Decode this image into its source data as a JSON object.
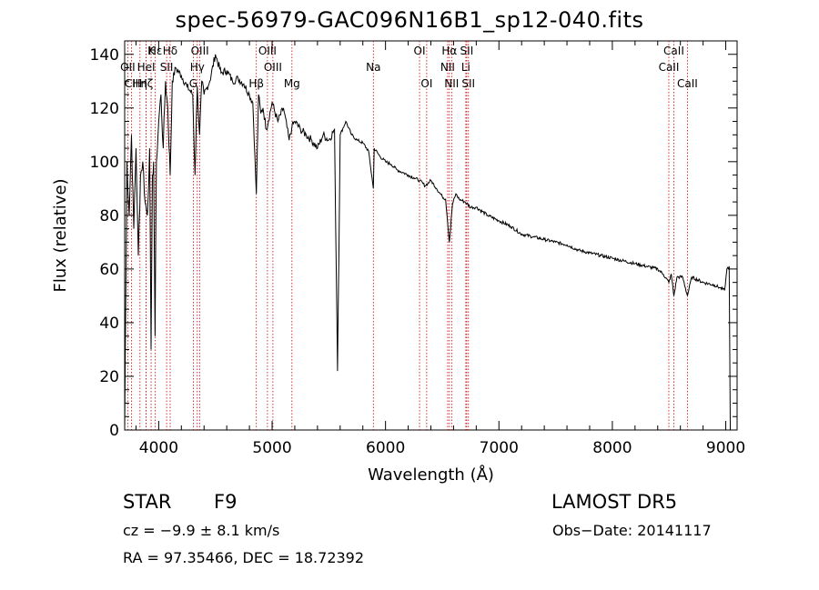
{
  "chart_data": {
    "type": "line",
    "title": "spec-56979-GAC096N16B1_sp12-040.fits",
    "xlabel": "Wavelength (Å)",
    "ylabel": "Flux (relative)",
    "xlim": [
      3700,
      9100
    ],
    "ylim": [
      0,
      145
    ],
    "xticks": [
      4000,
      5000,
      6000,
      7000,
      8000,
      9000
    ],
    "yticks": [
      0,
      20,
      40,
      60,
      80,
      100,
      120,
      140
    ],
    "grid": false,
    "line_color": "#000000",
    "marker_color": "#cc0000",
    "series": [
      {
        "x": [
          3700,
          3720,
          3740,
          3760,
          3780,
          3800,
          3820,
          3840,
          3860,
          3880,
          3900,
          3920,
          3933,
          3945,
          3955,
          3968,
          3980,
          4000,
          4020,
          4040,
          4060,
          4080,
          4101,
          4120,
          4150,
          4200,
          4250,
          4300,
          4320,
          4340,
          4360,
          4380,
          4400,
          4450,
          4500,
          4550,
          4600,
          4650,
          4700,
          4750,
          4800,
          4830,
          4861,
          4880,
          4900,
          4920,
          4950,
          5000,
          5050,
          5100,
          5150,
          5175,
          5200,
          5250,
          5300,
          5350,
          5400,
          5450,
          5500,
          5550,
          5577,
          5600,
          5650,
          5700,
          5750,
          5800,
          5850,
          5893,
          5900,
          5950,
          6000,
          6050,
          6100,
          6150,
          6200,
          6250,
          6300,
          6350,
          6400,
          6450,
          6500,
          6530,
          6563,
          6590,
          6620,
          6650,
          6700,
          6750,
          6800,
          6900,
          7000,
          7100,
          7200,
          7300,
          7400,
          7500,
          7600,
          7700,
          7800,
          7900,
          8000,
          8100,
          8200,
          8300,
          8400,
          8450,
          8498,
          8520,
          8542,
          8570,
          8620,
          8662,
          8700,
          8800,
          8900,
          8950,
          8990,
          9010,
          9030,
          9040
        ],
        "y": [
          0,
          100,
          80,
          110,
          75,
          105,
          65,
          95,
          100,
          85,
          80,
          105,
          30,
          95,
          100,
          35,
          100,
          115,
          125,
          105,
          130,
          120,
          95,
          130,
          135,
          132,
          128,
          125,
          95,
          128,
          110,
          130,
          125,
          130,
          140,
          133,
          134,
          130,
          131,
          129,
          125,
          122,
          88,
          125,
          118,
          120,
          112,
          122,
          115,
          120,
          108,
          113,
          115,
          112,
          110,
          108,
          105,
          110,
          108,
          112,
          22,
          110,
          115,
          110,
          108,
          107,
          104,
          90,
          105,
          102,
          100,
          99,
          97,
          96,
          95,
          94,
          93,
          91,
          93,
          90,
          87,
          86,
          70,
          84,
          88,
          86,
          85,
          83,
          83,
          80,
          78,
          76,
          73,
          72,
          71,
          70,
          69,
          67,
          66,
          65,
          64,
          63,
          62,
          61,
          60,
          58,
          55,
          58,
          50,
          57,
          57,
          50,
          57,
          55,
          54,
          53,
          52,
          60,
          61,
          0
        ]
      }
    ],
    "lines": [
      {
        "label": "Hδ",
        "x": 4101,
        "row": 1
      },
      {
        "label": "K",
        "x": 3933,
        "row": 1
      },
      {
        "label": "Hε",
        "x": 3970,
        "row": 1
      },
      {
        "label": "OII",
        "x": 3727,
        "row": 2
      },
      {
        "label": "HeI",
        "x": 3889,
        "row": 2
      },
      {
        "label": "SII",
        "x": 4070,
        "row": 2
      },
      {
        "label": "CII",
        "x": 3760,
        "row": 3
      },
      {
        "label": "Hη",
        "x": 3835,
        "row": 3
      },
      {
        "label": "Hζ",
        "x": 3889,
        "row": 3
      },
      {
        "label": "OIII",
        "x": 4363,
        "row": 1
      },
      {
        "label": "Hγ",
        "x": 4340,
        "row": 2
      },
      {
        "label": "G",
        "x": 4305,
        "row": 3
      },
      {
        "label": "OIII",
        "x": 4959,
        "row": 1
      },
      {
        "label": "OIII",
        "x": 5007,
        "row": 2
      },
      {
        "label": "Hβ",
        "x": 4861,
        "row": 3
      },
      {
        "label": "Mg",
        "x": 5175,
        "row": 3
      },
      {
        "label": "Na",
        "x": 5893,
        "row": 2
      },
      {
        "label": "OI",
        "x": 6300,
        "row": 1
      },
      {
        "label": "OI",
        "x": 6363,
        "row": 3
      },
      {
        "label": "Hα",
        "x": 6563,
        "row": 1
      },
      {
        "label": "SII",
        "x": 6716,
        "row": 1
      },
      {
        "label": "NII",
        "x": 6548,
        "row": 2
      },
      {
        "label": "Li",
        "x": 6708,
        "row": 2
      },
      {
        "label": "NII",
        "x": 6583,
        "row": 3
      },
      {
        "label": "SII",
        "x": 6731,
        "row": 3
      },
      {
        "label": "CaII",
        "x": 8542,
        "row": 1
      },
      {
        "label": "CaII",
        "x": 8498,
        "row": 2
      },
      {
        "label": "CaII",
        "x": 8662,
        "row": 3
      }
    ]
  },
  "info": {
    "class_label": "STAR",
    "subclass": "F9",
    "survey": "LAMOST DR5",
    "cz": "cz = −9.9 ± 8.1 km/s",
    "obs_date": "Obs−Date: 20141117",
    "coords": "RA =  97.35466, DEC =  18.72392"
  }
}
